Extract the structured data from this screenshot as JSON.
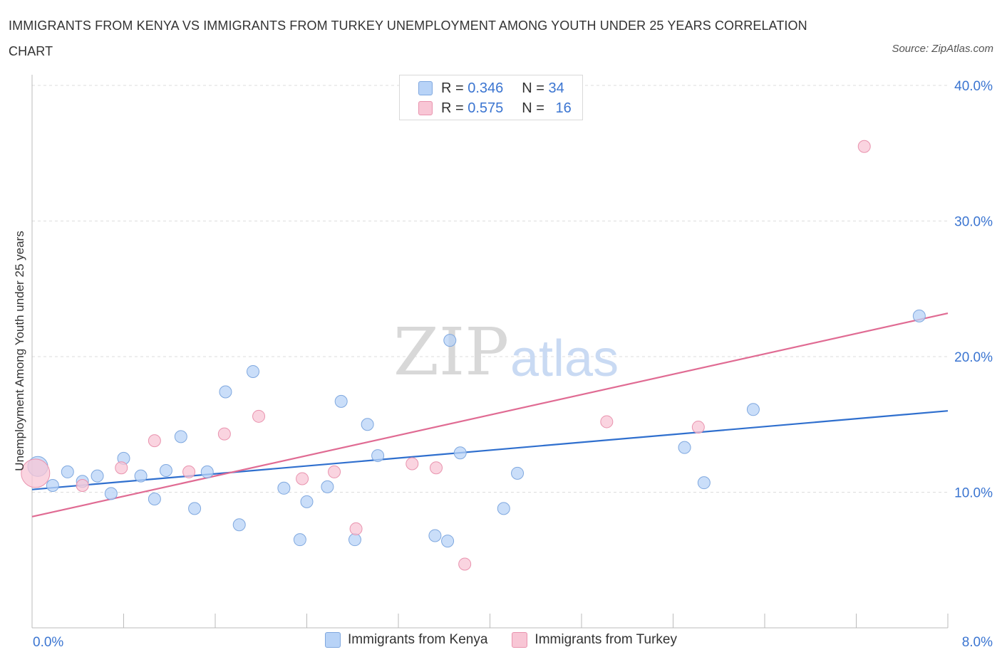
{
  "title": "IMMIGRANTS FROM KENYA VS IMMIGRANTS FROM TURKEY UNEMPLOYMENT AMONG YOUTH UNDER 25 YEARS CORRELATION CHART",
  "source": "Source: ZipAtlas.com",
  "watermark": {
    "zip": "ZIP",
    "atlas": "atlas"
  },
  "legend_top": [
    {
      "r_label": "R = ",
      "r_value": "0.346",
      "n_label": "N = ",
      "n_value": "34"
    },
    {
      "r_label": "R = ",
      "r_value": "0.575",
      "n_label": "N = ",
      "n_value": "16"
    }
  ],
  "colors": {
    "kenya_fill": "#b8d3f7",
    "kenya_stroke": "#7fa8df",
    "kenya_line": "#2f6fce",
    "turkey_fill": "#f8c6d5",
    "turkey_stroke": "#e993ae",
    "turkey_line": "#e06b93",
    "accent_text": "#3b75d1",
    "grid": "#dddddd"
  },
  "chart_data": {
    "type": "scatter",
    "title": "IMMIGRANTS FROM KENYA VS IMMIGRANTS FROM TURKEY UNEMPLOYMENT AMONG YOUTH UNDER 25 YEARS CORRELATION CHART",
    "xlabel": "",
    "ylabel": "Unemployment Among Youth under 25 years",
    "xlim": [
      0,
      8
    ],
    "ylim": [
      0,
      40
    ],
    "x_tick_labels": [
      "0.0%",
      "8.0%"
    ],
    "y_ticks": [
      10,
      20,
      30,
      40
    ],
    "y_tick_labels": [
      "10.0%",
      "20.0%",
      "30.0%",
      "40.0%"
    ],
    "grid": true,
    "legend_position": "bottom-center",
    "series": [
      {
        "name": "Immigrants from Kenya",
        "R": 0.346,
        "N": 34,
        "points": [
          [
            0.05,
            11.9
          ],
          [
            0.18,
            10.5
          ],
          [
            0.31,
            11.5
          ],
          [
            0.44,
            10.8
          ],
          [
            0.57,
            11.2
          ],
          [
            0.69,
            9.9
          ],
          [
            0.8,
            12.5
          ],
          [
            0.95,
            11.2
          ],
          [
            1.07,
            9.5
          ],
          [
            1.17,
            11.6
          ],
          [
            1.3,
            14.1
          ],
          [
            1.42,
            8.8
          ],
          [
            1.53,
            11.5
          ],
          [
            1.69,
            17.4
          ],
          [
            1.81,
            7.6
          ],
          [
            1.93,
            18.9
          ],
          [
            2.2,
            10.3
          ],
          [
            2.34,
            6.5
          ],
          [
            2.4,
            9.3
          ],
          [
            2.58,
            10.4
          ],
          [
            2.7,
            16.7
          ],
          [
            2.82,
            6.5
          ],
          [
            2.93,
            15.0
          ],
          [
            3.02,
            12.7
          ],
          [
            3.52,
            6.8
          ],
          [
            3.63,
            6.4
          ],
          [
            3.65,
            21.2
          ],
          [
            3.74,
            12.9
          ],
          [
            4.12,
            8.8
          ],
          [
            4.24,
            11.4
          ],
          [
            5.7,
            13.3
          ],
          [
            5.87,
            10.7
          ],
          [
            6.3,
            16.1
          ],
          [
            7.75,
            23.0
          ]
        ]
      },
      {
        "name": "Immigrants from Turkey",
        "R": 0.575,
        "N": 16,
        "points": [
          [
            0.03,
            11.4
          ],
          [
            0.44,
            10.5
          ],
          [
            0.78,
            11.8
          ],
          [
            1.07,
            13.8
          ],
          [
            1.37,
            11.5
          ],
          [
            1.68,
            14.3
          ],
          [
            1.98,
            15.6
          ],
          [
            2.36,
            11.0
          ],
          [
            2.64,
            11.5
          ],
          [
            2.83,
            7.3
          ],
          [
            3.32,
            12.1
          ],
          [
            3.53,
            11.8
          ],
          [
            3.78,
            4.7
          ],
          [
            5.02,
            15.2
          ],
          [
            5.82,
            14.8
          ],
          [
            7.27,
            35.5
          ]
        ]
      }
    ],
    "trend_lines": [
      {
        "series": "Immigrants from Kenya",
        "x": [
          0,
          8
        ],
        "y": [
          10.2,
          16.0
        ]
      },
      {
        "series": "Immigrants from Turkey",
        "x": [
          0,
          8
        ],
        "y": [
          8.2,
          23.2
        ]
      }
    ]
  }
}
